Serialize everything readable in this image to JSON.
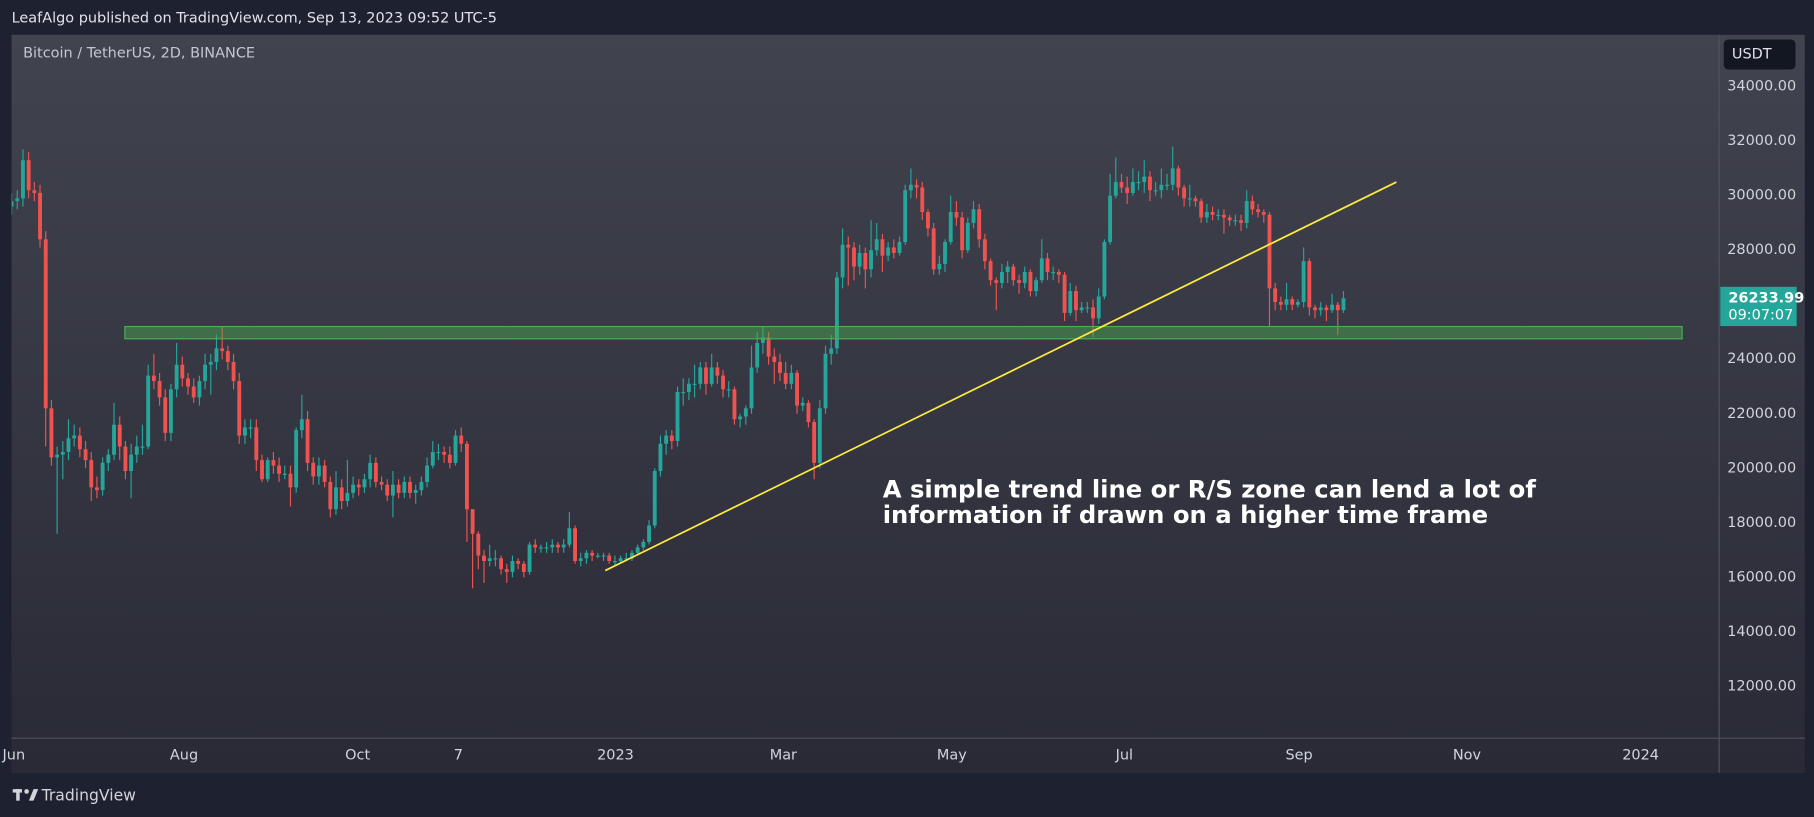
{
  "header": {
    "text": "LeafAlgo published on TradingView.com, Sep 13, 2023 09:52 UTC-5"
  },
  "footer": {
    "brand": "TradingView"
  },
  "chart_data": {
    "type": "candlestick",
    "title": "Bitcoin / TetherUS, 2D, BINANCE",
    "currency": "USDT",
    "countdown": "09:07:07",
    "up_color": "#26a69a",
    "down_color": "#ef5350",
    "grid": false,
    "open": [
      29600,
      29800,
      29900,
      31300,
      30200,
      30100,
      28400,
      22200,
      20400,
      20500,
      20600,
      21100,
      21200,
      20700,
      20300,
      19300,
      19200,
      20200,
      20500,
      21600,
      20800,
      19900,
      20500,
      20800,
      20800,
      23400,
      23200,
      22600,
      21300,
      22900,
      23800,
      23300,
      23000,
      22600,
      23200,
      23800,
      23900,
      24400,
      24300,
      23900,
      23200,
      21200,
      21500,
      21500,
      20300,
      19600,
      20300,
      20100,
      19800,
      19800,
      19300,
      21400,
      21800,
      20200,
      19700,
      20100,
      19500,
      18500,
      19300,
      18800,
      19100,
      19400,
      19300,
      19600,
      20200,
      19500,
      19400,
      19000,
      19400,
      19100,
      19500,
      19100,
      19200,
      19500,
      20100,
      20600,
      20600,
      20500,
      20200,
      21200,
      20900,
      18500,
      17600,
      16800,
      16600,
      16700,
      16700,
      16300,
      16200,
      16600,
      16500,
      16200,
      17200,
      17100,
      17100,
      17100,
      17200,
      17100,
      17200,
      17800,
      16600,
      16700,
      16900,
      16800,
      16800,
      16800,
      16600,
      16600,
      16700,
      16700,
      16900,
      17100,
      17300,
      17900,
      19900,
      20900,
      21200,
      21000,
      22800,
      22800,
      23100,
      23100,
      23700,
      23100,
      23700,
      23400,
      22900,
      22900,
      21800,
      21900,
      22200,
      23700,
      24600,
      24800,
      24100,
      23900,
      23500,
      23100,
      23500,
      22300,
      22400,
      21700,
      20200,
      22200,
      24200,
      24400,
      27000,
      28200,
      28100,
      27400,
      27900,
      27300,
      28000,
      28400,
      27800,
      28100,
      27900,
      28300,
      30200,
      30400,
      30300,
      29400,
      28800,
      27300,
      27500,
      28300,
      29400,
      29200,
      28000,
      29000,
      29500,
      28400,
      27600,
      26900,
      26800,
      27200,
      27400,
      26900,
      26800,
      27200,
      26500,
      26900,
      27700,
      27200,
      27200,
      27100,
      25700,
      26500,
      25800,
      25900,
      25900,
      25500,
      26300,
      28300,
      30000,
      30500,
      30300,
      30100,
      30500,
      30500,
      30700,
      30200,
      30200,
      30400,
      30400,
      31000,
      30300,
      29900,
      29900,
      29800,
      29200,
      29400,
      29300,
      29300,
      29200,
      29100,
      29100,
      29000,
      29800,
      29500,
      29400,
      29300,
      26600,
      26100,
      26000,
      26200,
      26000,
      26100,
      27600,
      25900,
      25800,
      25900,
      25800,
      26000,
      25800
    ],
    "high": [
      30100,
      30200,
      31700,
      31600,
      30500,
      30400,
      28700,
      22500,
      20800,
      21000,
      21800,
      21600,
      21500,
      21000,
      20600,
      19700,
      20400,
      20700,
      22400,
      21900,
      21000,
      20900,
      21200,
      21600,
      23800,
      24200,
      23500,
      22900,
      23100,
      24600,
      24100,
      23500,
      23300,
      23400,
      24200,
      24200,
      24900,
      25200,
      24500,
      24200,
      23500,
      21800,
      21800,
      21800,
      20500,
      20400,
      20600,
      20400,
      20100,
      20100,
      21500,
      22700,
      22100,
      20400,
      20400,
      20300,
      19700,
      19900,
      19600,
      20300,
      19700,
      19600,
      19800,
      20500,
      20400,
      19700,
      19600,
      19900,
      19600,
      19700,
      19700,
      19400,
      19700,
      20400,
      21000,
      20900,
      20800,
      20800,
      21400,
      21500,
      21000,
      18500,
      17700,
      17000,
      17200,
      17000,
      16800,
      16500,
      16800,
      16700,
      16600,
      17300,
      17400,
      17200,
      17300,
      17400,
      17300,
      17400,
      18400,
      17900,
      16900,
      17000,
      17000,
      16900,
      16900,
      16900,
      16800,
      16800,
      16900,
      17000,
      17200,
      17400,
      18100,
      20000,
      21200,
      21400,
      21400,
      23000,
      23300,
      23300,
      23800,
      23900,
      23900,
      24200,
      23900,
      23600,
      23200,
      23000,
      22000,
      22300,
      24500,
      25000,
      25200,
      25000,
      24400,
      24200,
      23900,
      23800,
      23600,
      22600,
      22500,
      21800,
      22500,
      24500,
      24900,
      27200,
      28800,
      28500,
      28300,
      28200,
      28100,
      29100,
      29000,
      28600,
      28300,
      28400,
      28500,
      30400,
      31000,
      30600,
      30500,
      29500,
      29000,
      27800,
      28400,
      30000,
      29800,
      29400,
      29200,
      29800,
      29700,
      28600,
      27700,
      27000,
      27500,
      27600,
      27500,
      27100,
      27400,
      27300,
      27000,
      28400,
      27900,
      27400,
      27300,
      27200,
      26800,
      26700,
      26100,
      26100,
      26200,
      26600,
      28400,
      30800,
      31400,
      30800,
      30700,
      31000,
      30900,
      31300,
      30900,
      30500,
      31000,
      30800,
      31800,
      31100,
      30400,
      30400,
      30000,
      29900,
      29700,
      29600,
      29500,
      29500,
      29300,
      29300,
      29300,
      30200,
      30000,
      29700,
      29500,
      29400,
      26800,
      26300,
      26800,
      26300,
      26200,
      28100,
      27700,
      26000,
      26100,
      26000,
      26400,
      26100,
      26500
    ],
    "low": [
      29300,
      29500,
      29600,
      29900,
      29800,
      28100,
      20800,
      20100,
      17600,
      19600,
      20300,
      20800,
      20400,
      20000,
      18800,
      18900,
      19000,
      19900,
      20300,
      20300,
      19600,
      18900,
      20200,
      20500,
      20700,
      22900,
      22300,
      21000,
      21000,
      22600,
      23000,
      22700,
      22400,
      22300,
      22900,
      22700,
      23600,
      24000,
      23600,
      22900,
      20900,
      20900,
      21100,
      19900,
      19500,
      19500,
      19800,
      19500,
      19600,
      18600,
      19100,
      21100,
      19900,
      19400,
      19400,
      19300,
      18200,
      18300,
      18500,
      18600,
      18900,
      19000,
      19100,
      19300,
      19300,
      19200,
      18800,
      18200,
      18900,
      18900,
      18900,
      18700,
      19000,
      19300,
      20000,
      20300,
      20200,
      20000,
      20100,
      20600,
      17300,
      15600,
      16300,
      15800,
      16400,
      16400,
      16100,
      15800,
      16000,
      16300,
      16000,
      16100,
      16900,
      16900,
      16900,
      16900,
      16900,
      16900,
      17100,
      16500,
      16400,
      16500,
      16600,
      16700,
      16600,
      16500,
      16400,
      16500,
      16600,
      16600,
      16800,
      17000,
      17200,
      17800,
      19700,
      20500,
      20700,
      20800,
      22300,
      22500,
      22600,
      22900,
      22700,
      23000,
      23100,
      22600,
      22600,
      21600,
      21500,
      21600,
      22000,
      23500,
      24200,
      23800,
      23100,
      23200,
      22900,
      22900,
      22000,
      22100,
      21500,
      19600,
      20000,
      22000,
      23800,
      24200,
      26600,
      26700,
      26900,
      27100,
      26600,
      27000,
      27800,
      27200,
      27600,
      27700,
      27800,
      28200,
      29900,
      29900,
      29100,
      28500,
      27100,
      27100,
      27200,
      28200,
      28900,
      27700,
      27900,
      28800,
      28100,
      27300,
      26700,
      25800,
      26600,
      26800,
      26700,
      26400,
      26600,
      26300,
      26300,
      26800,
      26900,
      26900,
      26800,
      25400,
      25600,
      25400,
      25700,
      25700,
      24800,
      25300,
      26200,
      28200,
      29900,
      30100,
      29700,
      30000,
      30200,
      30100,
      29800,
      30000,
      29900,
      30200,
      30200,
      30000,
      29600,
      29600,
      29600,
      29000,
      29000,
      29100,
      29100,
      28600,
      28900,
      28900,
      28700,
      28800,
      29300,
      29200,
      29000,
      25200,
      25800,
      25800,
      25800,
      25800,
      25900,
      25900,
      25600,
      25500,
      25600,
      25400,
      25700,
      24900,
      25700
    ],
    "close": [
      29800,
      29900,
      31300,
      30200,
      30100,
      28400,
      22200,
      20400,
      20500,
      20600,
      21100,
      21200,
      20700,
      20300,
      19300,
      19200,
      20200,
      20500,
      21600,
      20800,
      19900,
      20500,
      20800,
      20800,
      23400,
      23200,
      22600,
      21300,
      22900,
      23800,
      23300,
      23000,
      22600,
      23200,
      23800,
      23900,
      24400,
      24300,
      23900,
      23200,
      21200,
      21500,
      21500,
      20300,
      19600,
      20300,
      20100,
      19800,
      19800,
      19300,
      21400,
      21800,
      20200,
      19700,
      20100,
      19500,
      18500,
      19300,
      18800,
      19100,
      19400,
      19300,
      19600,
      20200,
      19500,
      19400,
      19000,
      19400,
      19100,
      19500,
      19100,
      19200,
      19500,
      20100,
      20600,
      20600,
      20500,
      20200,
      21200,
      20900,
      18500,
      17600,
      16800,
      16600,
      16700,
      16700,
      16300,
      16200,
      16600,
      16500,
      16200,
      17200,
      17100,
      17100,
      17100,
      17200,
      17100,
      17200,
      17800,
      16600,
      16700,
      16900,
      16800,
      16800,
      16800,
      16600,
      16600,
      16700,
      16700,
      16900,
      17100,
      17300,
      17900,
      19900,
      20900,
      21200,
      21000,
      22800,
      22800,
      23100,
      23100,
      23700,
      23100,
      23700,
      23400,
      22900,
      22900,
      21800,
      21900,
      22200,
      23700,
      24600,
      24800,
      24100,
      23900,
      23500,
      23100,
      23500,
      22300,
      22400,
      21700,
      20200,
      22200,
      24200,
      24400,
      27000,
      28200,
      28100,
      27400,
      27900,
      27300,
      28000,
      28400,
      27800,
      28100,
      27900,
      28300,
      30200,
      30400,
      30300,
      29400,
      28800,
      27300,
      27500,
      28300,
      29400,
      29200,
      28000,
      29000,
      29500,
      28400,
      27600,
      26900,
      26800,
      27200,
      27400,
      26900,
      26800,
      27200,
      26500,
      26900,
      27700,
      27200,
      27200,
      27100,
      25700,
      26500,
      25800,
      25900,
      25900,
      25500,
      26300,
      28300,
      30000,
      30500,
      30300,
      30100,
      30500,
      30500,
      30700,
      30200,
      30200,
      30400,
      30400,
      31000,
      30300,
      29900,
      29900,
      29800,
      29200,
      29400,
      29300,
      29300,
      29200,
      29100,
      29100,
      29000,
      29800,
      29500,
      29400,
      29300,
      26600,
      26100,
      26000,
      26200,
      26000,
      26100,
      27600,
      25900,
      25800,
      25900,
      25800,
      26000,
      25800,
      26233.99
    ],
    "xlim": [
      0,
      300
    ],
    "xticks": [
      {
        "value": 0.4,
        "label": "Jun"
      },
      {
        "value": 30.3,
        "label": "Aug"
      },
      {
        "value": 60.8,
        "label": "Oct"
      },
      {
        "value": 78.5,
        "label": "7"
      },
      {
        "value": 106.1,
        "label": "2023"
      },
      {
        "value": 135.6,
        "label": "Mar"
      },
      {
        "value": 165.2,
        "label": "May"
      },
      {
        "value": 195.5,
        "label": "Jul"
      },
      {
        "value": 226.2,
        "label": "Sep"
      },
      {
        "value": 255.7,
        "label": "Nov"
      },
      {
        "value": 286.2,
        "label": "2024"
      }
    ],
    "ylim": [
      10100,
      35900
    ],
    "yticks": [
      {
        "value": 12000,
        "label": "12000.00"
      },
      {
        "value": 14000,
        "label": "14000.00"
      },
      {
        "value": 16000,
        "label": "16000.00"
      },
      {
        "value": 18000,
        "label": "18000.00"
      },
      {
        "value": 20000,
        "label": "20000.00"
      },
      {
        "value": 22000,
        "label": "22000.00"
      },
      {
        "value": 24000,
        "label": "24000.00"
      },
      {
        "value": 26000,
        "label": "26000.00"
      },
      {
        "value": 28000,
        "label": "28000.00"
      },
      {
        "value": 30000,
        "label": "30000.00"
      },
      {
        "value": 32000,
        "label": "32000.00"
      },
      {
        "value": 34000,
        "label": "34000.00"
      }
    ],
    "zone": {
      "x": [
        19.9,
        293.5
      ],
      "y": [
        24750,
        25200
      ],
      "color": "#4caf50"
    },
    "trend_line": {
      "x": [
        104.3,
        243.3
      ],
      "y": [
        16250,
        30500
      ],
      "color": "#ffeb3b"
    },
    "annotation": [
      "A simple trend line or R/S zone can lend a lot of",
      "information if drawn on a higher time frame"
    ]
  }
}
